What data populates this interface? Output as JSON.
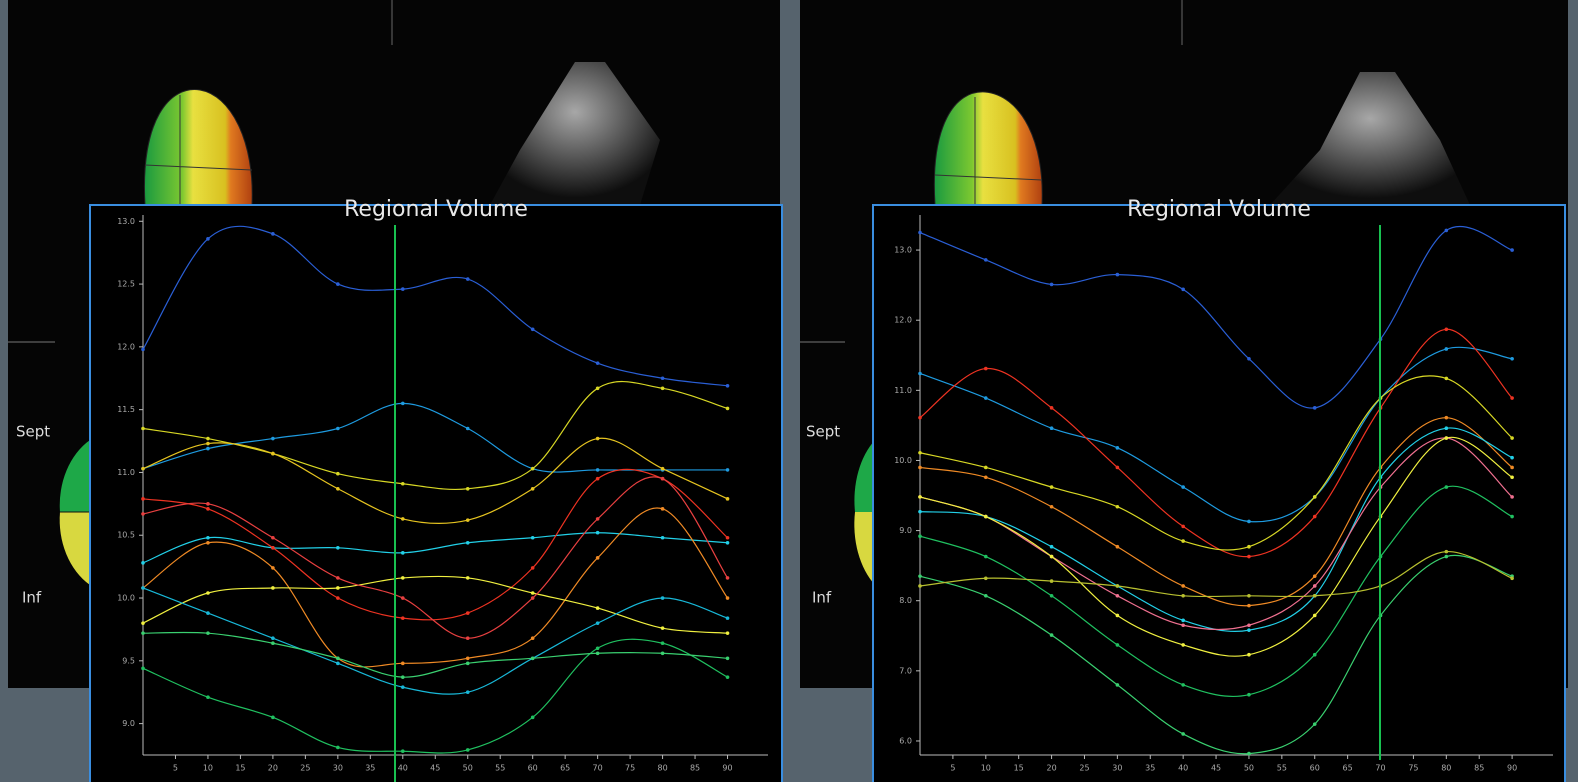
{
  "panels": [
    {
      "sept": "Sept",
      "inf": "Inf"
    },
    {
      "sept": "Sept",
      "inf": "Inf"
    }
  ],
  "chart_data": [
    {
      "type": "line",
      "title": "Regional Volume",
      "x": [
        0,
        10,
        20,
        30,
        40,
        50,
        60,
        70,
        80,
        90
      ],
      "xlim": [
        0,
        95
      ],
      "xticks": [
        5,
        10,
        15,
        20,
        25,
        30,
        35,
        40,
        45,
        50,
        55,
        60,
        65,
        70,
        75,
        80,
        85,
        90
      ],
      "ylim": [
        8.75,
        13.05
      ],
      "yticks": [
        {
          "value": 13,
          "label": "13.0"
        },
        12.5,
        {
          "value": 12,
          "label": "12.0"
        },
        11.5,
        {
          "value": 11,
          "label": "11.0"
        },
        10.5,
        {
          "value": 10,
          "label": "10.0"
        },
        9.5,
        {
          "value": 9,
          "label": "9.0"
        }
      ],
      "series": [
        {
          "color": "#2a5fd6",
          "values": [
            11.98,
            12.86,
            12.9,
            12.5,
            12.46,
            12.54,
            12.14,
            11.87,
            11.75,
            11.69
          ]
        },
        {
          "color": "#1e9be0",
          "values": [
            11.03,
            11.19,
            11.27,
            11.35,
            11.55,
            11.35,
            11.03,
            11.02,
            11.02,
            11.02
          ]
        },
        {
          "color": "#d8d825",
          "values": [
            11.35,
            11.27,
            11.15,
            10.99,
            10.91,
            10.87,
            11.03,
            11.67,
            11.67,
            11.51
          ]
        },
        {
          "color": "#e6c420",
          "values": [
            11.03,
            11.23,
            11.15,
            10.87,
            10.63,
            10.62,
            10.87,
            11.27,
            11.03,
            10.79
          ]
        },
        {
          "color": "#22d0e8",
          "values": [
            10.28,
            10.48,
            10.4,
            10.4,
            10.36,
            10.44,
            10.48,
            10.52,
            10.48,
            10.44
          ]
        },
        {
          "color": "#ee3322",
          "values": [
            10.79,
            10.71,
            10.4,
            10.0,
            9.84,
            9.88,
            10.24,
            10.95,
            10.95,
            10.48
          ]
        },
        {
          "color": "#ef8a25",
          "values": [
            10.08,
            10.44,
            10.24,
            9.52,
            9.48,
            9.52,
            9.68,
            10.32,
            10.71,
            10.0
          ]
        },
        {
          "color": "#f0f040",
          "values": [
            9.8,
            10.04,
            10.08,
            10.08,
            10.16,
            10.16,
            10.04,
            9.92,
            9.76,
            9.72
          ]
        },
        {
          "color": "#18b8d8",
          "values": [
            10.08,
            9.88,
            9.68,
            9.48,
            9.29,
            9.25,
            9.52,
            9.8,
            10.0,
            9.84
          ]
        },
        {
          "color": "#20c060",
          "values": [
            9.44,
            9.21,
            9.05,
            8.81,
            8.78,
            8.79,
            9.05,
            9.6,
            9.64,
            9.37
          ]
        },
        {
          "color": "#3ad070",
          "values": [
            9.72,
            9.72,
            9.64,
            9.52,
            9.37,
            9.48,
            9.52,
            9.56,
            9.56,
            9.52
          ]
        },
        {
          "color": "#e84040",
          "values": [
            10.67,
            10.75,
            10.48,
            10.16,
            10.0,
            9.68,
            10.0,
            10.63,
            10.95,
            10.16
          ]
        }
      ]
    },
    {
      "type": "line",
      "title": "Regional Volume",
      "x": [
        0,
        10,
        20,
        30,
        40,
        50,
        60,
        70,
        80,
        90
      ],
      "xlim": [
        0,
        95
      ],
      "xticks": [
        5,
        10,
        15,
        20,
        25,
        30,
        35,
        40,
        45,
        50,
        55,
        60,
        65,
        70,
        75,
        80,
        85,
        90
      ],
      "ylim": [
        5.8,
        13.5
      ],
      "yticks": [
        {
          "value": 13,
          "label": "13.0"
        },
        {
          "value": 12,
          "label": "12.0"
        },
        {
          "value": 11,
          "label": "11.0"
        },
        {
          "value": 10,
          "label": "10.0"
        },
        {
          "value": 9,
          "label": "9.0"
        },
        {
          "value": 8,
          "label": "8.0"
        },
        {
          "value": 7,
          "label": "7.0"
        },
        {
          "value": 6,
          "label": "6.0"
        }
      ],
      "series": [
        {
          "color": "#2a5fd6",
          "values": [
            13.25,
            12.86,
            12.51,
            12.65,
            12.44,
            11.45,
            10.75,
            11.73,
            13.28,
            13.0
          ]
        },
        {
          "color": "#1e9be0",
          "values": [
            11.24,
            10.89,
            10.46,
            10.18,
            9.62,
            9.13,
            9.48,
            10.89,
            11.59,
            11.45
          ]
        },
        {
          "color": "#ee3322",
          "values": [
            10.61,
            11.31,
            10.75,
            9.9,
            9.06,
            8.63,
            9.2,
            10.75,
            11.87,
            10.89
          ]
        },
        {
          "color": "#d8d825",
          "values": [
            10.11,
            9.9,
            9.62,
            9.34,
            8.85,
            8.77,
            9.48,
            10.89,
            11.17,
            10.32
          ]
        },
        {
          "color": "#ef8a25",
          "values": [
            9.9,
            9.76,
            9.34,
            8.77,
            8.21,
            7.93,
            8.35,
            9.9,
            10.61,
            9.9
          ]
        },
        {
          "color": "#22d0e8",
          "values": [
            9.27,
            9.2,
            8.77,
            8.21,
            7.72,
            7.58,
            8.07,
            9.76,
            10.46,
            10.04
          ]
        },
        {
          "color": "#f07090",
          "values": [
            9.48,
            9.2,
            8.63,
            8.07,
            7.65,
            7.65,
            8.21,
            9.62,
            10.32,
            9.48
          ]
        },
        {
          "color": "#f0f040",
          "values": [
            9.48,
            9.2,
            8.63,
            7.79,
            7.37,
            7.23,
            7.79,
            9.2,
            10.32,
            9.76
          ]
        },
        {
          "color": "#20c060",
          "values": [
            8.92,
            8.63,
            8.07,
            7.37,
            6.8,
            6.66,
            7.23,
            8.63,
            9.62,
            9.2
          ]
        },
        {
          "color": "#3ad070",
          "values": [
            8.35,
            8.07,
            7.51,
            6.8,
            6.1,
            5.82,
            6.24,
            7.79,
            8.63,
            8.35
          ]
        },
        {
          "color": "#b8c030",
          "values": [
            8.21,
            8.32,
            8.28,
            8.21,
            8.07,
            8.07,
            8.07,
            8.21,
            8.7,
            8.32
          ]
        }
      ]
    }
  ]
}
